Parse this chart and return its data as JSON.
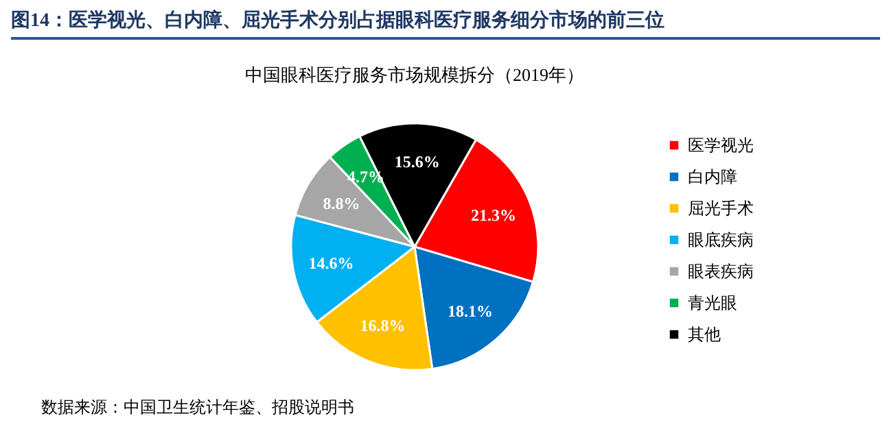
{
  "chart_data": {
    "type": "pie",
    "title": "图14：医学视光、白内障、屈光手术分别占据眼科医疗服务细分市场的前三位",
    "subtitle": "中国眼科医疗服务市场规模拆分（2019年）",
    "categories": [
      "医学视光",
      "白内障",
      "屈光手术",
      "眼底疾病",
      "眼表疾病",
      "青光眼",
      "其他"
    ],
    "values": [
      21.3,
      18.1,
      16.8,
      14.6,
      8.8,
      4.7,
      15.6
    ],
    "value_labels": [
      "21.3%",
      "18.1%",
      "16.8%",
      "14.6%",
      "8.8%",
      "4.7%",
      "15.6%"
    ],
    "colors": [
      "#ff0000",
      "#0070c0",
      "#ffc000",
      "#00b0f0",
      "#a6a6a6",
      "#00b050",
      "#000000"
    ],
    "legend": "right",
    "annotations": [
      "数据来源：中国卫生统计年鉴、招股说明书"
    ]
  }
}
